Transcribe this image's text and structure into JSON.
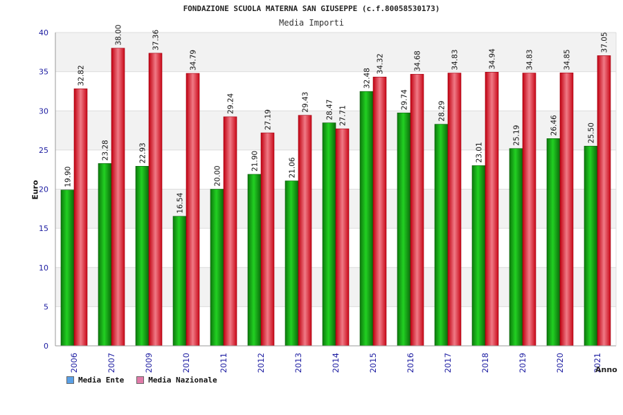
{
  "chart_data": {
    "type": "bar",
    "title": "FONDAZIONE SCUOLA MATERNA SAN GIUSEPPE (c.f.80058530173)",
    "subtitle": "Media Importi",
    "xlabel": "Anno",
    "ylabel": "Euro",
    "ylim": [
      0,
      40
    ],
    "yticks": [
      0,
      5,
      10,
      15,
      20,
      25,
      30,
      35,
      40
    ],
    "grid": true,
    "legend_position": "bottom-left",
    "categories": [
      "2006",
      "2007",
      "2009",
      "2010",
      "2011",
      "2012",
      "2013",
      "2014",
      "2015",
      "2016",
      "2017",
      "2018",
      "2019",
      "2020",
      "2021"
    ],
    "series": [
      {
        "name": "Media Ente",
        "color": "#16a816",
        "legend_color": "#5aa0e6",
        "values": [
          19.9,
          23.28,
          22.93,
          16.54,
          20.0,
          21.9,
          21.06,
          28.47,
          32.48,
          29.74,
          28.29,
          23.01,
          25.19,
          26.46,
          25.5
        ],
        "labels": [
          "19.90",
          "23.28",
          "22.93",
          "16.54",
          "20.00",
          "21.90",
          "21.06",
          "28.47",
          "32.48",
          "29.74",
          "28.29",
          "23.01",
          "25.19",
          "26.46",
          "25.50"
        ]
      },
      {
        "name": "Media Nazionale",
        "color": "#e8202a",
        "legend_color": "#e07aa8",
        "values": [
          32.82,
          38.0,
          37.36,
          34.79,
          29.24,
          27.19,
          29.43,
          27.71,
          34.32,
          34.68,
          34.83,
          34.94,
          34.83,
          34.85,
          37.05
        ],
        "labels": [
          "32.82",
          "38.00",
          "37.36",
          "34.79",
          "29.24",
          "27.19",
          "29.43",
          "27.71",
          "34.32",
          "34.68",
          "34.83",
          "34.94",
          "34.83",
          "34.85",
          "37.05"
        ]
      }
    ]
  }
}
